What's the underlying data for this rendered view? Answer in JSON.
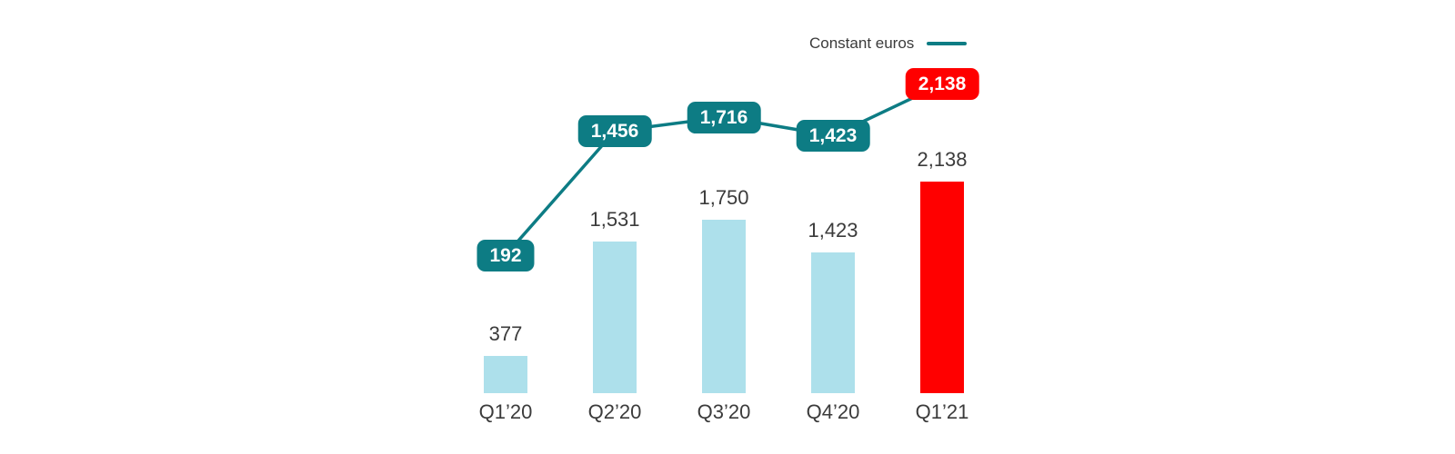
{
  "colors": {
    "teal": "#0d7c84",
    "light_blue": "#ade0eb",
    "red": "#ff0000",
    "text": "#3b3b3b",
    "background": "#ffffff"
  },
  "legend": {
    "label": "Constant euros",
    "swatch_color": "#0d7c84",
    "position": "top-right"
  },
  "chart_data": {
    "type": "bar+line",
    "title": "",
    "categories": [
      "Q1’20",
      "Q2’20",
      "Q3’20",
      "Q4’20",
      "Q1’21"
    ],
    "series": [
      {
        "name": "bars",
        "type": "bar",
        "values": [
          377,
          1531,
          1750,
          1423,
          2138
        ],
        "labels": [
          "377",
          "1,531",
          "1,750",
          "1,423",
          "2,138"
        ],
        "colors": [
          "#ade0eb",
          "#ade0eb",
          "#ade0eb",
          "#ade0eb",
          "#ff0000"
        ]
      },
      {
        "name": "Constant euros",
        "type": "line",
        "values": [
          192,
          1456,
          1716,
          1423,
          2138
        ],
        "labels": [
          "192",
          "1,456",
          "1,716",
          "1,423",
          "2,138"
        ],
        "line_color": "#0d7c84",
        "pill_colors": [
          "#0d7c84",
          "#0d7c84",
          "#0d7c84",
          "#0d7c84",
          "#ff0000"
        ]
      }
    ],
    "ylim": [
      0,
      2250
    ],
    "grid": false,
    "legend_position": "top-right"
  }
}
